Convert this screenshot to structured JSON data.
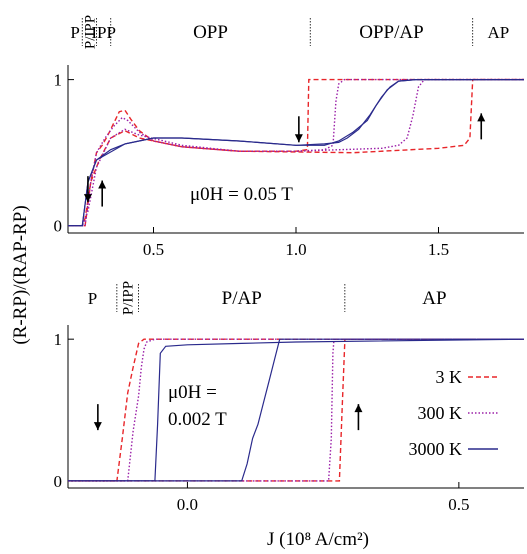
{
  "figure": {
    "ylabel": "(R-RP)/(RAP-RP)",
    "xlabel": "J (10⁸ A/cm²)"
  },
  "chart_data": [
    {
      "type": "line",
      "panel": "top",
      "annotation": "μ0H = 0.05 T",
      "xlim": [
        0.2,
        1.8
      ],
      "ylim": [
        -0.05,
        1.1
      ],
      "x_ticks": [
        "0.5",
        "1.0",
        "1.5"
      ],
      "y_ticks": [
        "0",
        "1"
      ],
      "regions": [
        {
          "label": "P",
          "from": 0.2,
          "to": 0.25
        },
        {
          "label": "P/IPP",
          "from": 0.25,
          "to": 0.3
        },
        {
          "label": "IPP",
          "from": 0.3,
          "to": 0.35
        },
        {
          "label": "OPP",
          "from": 0.35,
          "to": 1.05
        },
        {
          "label": "OPP/AP",
          "from": 1.05,
          "to": 1.62
        },
        {
          "label": "AP",
          "from": 1.62,
          "to": 1.8
        }
      ],
      "separators": [
        0.25,
        0.3,
        0.35,
        1.05,
        1.62
      ],
      "series": [
        {
          "name": "3 K",
          "color": "#e8262a",
          "dash": "5 3",
          "x": [
            0.2,
            0.26,
            0.28,
            0.3,
            0.32,
            0.34,
            0.36,
            0.38,
            0.4,
            0.42,
            0.45,
            0.5,
            0.6,
            0.8,
            1.0,
            1.04,
            1.045,
            1.06,
            1.2,
            1.5,
            1.8
          ],
          "y": [
            0,
            0,
            0.3,
            0.5,
            0.55,
            0.62,
            0.7,
            0.78,
            0.79,
            0.73,
            0.65,
            0.58,
            0.54,
            0.51,
            0.51,
            0.52,
            1.0,
            1.0,
            1.0,
            1.0,
            1.0
          ],
          "x_rev": [
            1.8,
            1.62,
            1.61,
            1.59,
            1.5,
            1.2,
            0.8,
            0.6,
            0.45,
            0.4,
            0.35,
            0.31,
            0.28,
            0.26,
            0.25,
            0.2
          ],
          "y_rev": [
            1.0,
            1.0,
            0.6,
            0.55,
            0.53,
            0.5,
            0.51,
            0.54,
            0.6,
            0.65,
            0.6,
            0.45,
            0.3,
            0.05,
            0,
            0
          ]
        },
        {
          "name": "300 K",
          "color": "#9b20a8",
          "dash": "1.5 2",
          "x": [
            0.2,
            0.26,
            0.28,
            0.3,
            0.33,
            0.36,
            0.39,
            0.41,
            0.45,
            0.5,
            0.6,
            0.8,
            1.0,
            1.1,
            1.13,
            1.14,
            1.15,
            1.17,
            1.2,
            1.5,
            1.8
          ],
          "y": [
            0,
            0,
            0.3,
            0.5,
            0.6,
            0.68,
            0.74,
            0.72,
            0.64,
            0.58,
            0.54,
            0.51,
            0.51,
            0.52,
            0.55,
            0.85,
            0.97,
            1.0,
            1.0,
            1.0,
            1.0
          ],
          "x_rev": [
            1.8,
            1.45,
            1.43,
            1.41,
            1.39,
            1.36,
            1.3,
            1.0,
            0.8,
            0.6,
            0.45,
            0.4,
            0.35,
            0.3,
            0.27,
            0.25,
            0.2
          ],
          "y_rev": [
            1.0,
            1.0,
            0.95,
            0.75,
            0.6,
            0.55,
            0.53,
            0.51,
            0.51,
            0.55,
            0.62,
            0.66,
            0.6,
            0.4,
            0.1,
            0,
            0
          ]
        },
        {
          "name": "3000 K",
          "color": "#2a2a8c",
          "dash": "",
          "x": [
            0.2,
            0.25,
            0.27,
            0.3,
            0.35,
            0.4,
            0.5,
            0.6,
            0.8,
            1.0,
            1.1,
            1.15,
            1.2,
            1.25,
            1.28,
            1.32,
            1.36,
            1.42,
            1.5,
            1.8
          ],
          "y": [
            0,
            0,
            0.3,
            0.45,
            0.52,
            0.56,
            0.6,
            0.6,
            0.58,
            0.55,
            0.55,
            0.58,
            0.64,
            0.72,
            0.82,
            0.93,
            0.99,
            1.0,
            1.0,
            1.0
          ],
          "x_rev": [
            1.8,
            1.45,
            1.42,
            1.36,
            1.33,
            1.3,
            1.26,
            1.22,
            1.18,
            1.15,
            1.1,
            1.0,
            0.8,
            0.6,
            0.5,
            0.4,
            0.3,
            0.27,
            0.25,
            0.2
          ],
          "y_rev": [
            1.0,
            1.0,
            1.0,
            0.99,
            0.95,
            0.88,
            0.76,
            0.66,
            0.6,
            0.57,
            0.56,
            0.55,
            0.58,
            0.6,
            0.6,
            0.56,
            0.45,
            0.3,
            0,
            0
          ]
        }
      ],
      "arrows": [
        {
          "x": 0.27,
          "y": 0.25,
          "dir": "down"
        },
        {
          "x": 0.32,
          "y": 0.22,
          "dir": "up"
        },
        {
          "x": 1.01,
          "y": 0.66,
          "dir": "down"
        },
        {
          "x": 1.65,
          "y": 0.68,
          "dir": "up"
        }
      ]
    },
    {
      "type": "line",
      "panel": "bottom",
      "annotation_lines": [
        "μ0H =",
        "0.002 T"
      ],
      "xlim": [
        -0.22,
        0.62
      ],
      "ylim": [
        -0.05,
        1.1
      ],
      "x_ticks": [
        "0.0",
        "0.5"
      ],
      "y_ticks": [
        "0",
        "1"
      ],
      "regions": [
        {
          "label": "P",
          "from": -0.22,
          "to": -0.13
        },
        {
          "label": "P/IPP",
          "from": -0.13,
          "to": -0.09
        },
        {
          "label": "P/AP",
          "from": -0.09,
          "to": 0.29
        },
        {
          "label": "AP",
          "from": 0.29,
          "to": 0.62
        }
      ],
      "separators": [
        -0.13,
        -0.09,
        0.29
      ],
      "series": [
        {
          "name": "3 K",
          "color": "#e8262a",
          "dash": "5 3",
          "x": [
            -0.22,
            -0.13,
            -0.12,
            -0.11,
            -0.1,
            -0.09,
            -0.08,
            0.0,
            0.62
          ],
          "y": [
            0,
            0,
            0.3,
            0.62,
            0.8,
            0.97,
            1.0,
            1.0,
            1.0
          ],
          "x_rev": [
            0.62,
            0.29,
            0.285,
            0.28,
            0.2,
            -0.22
          ],
          "y_rev": [
            1.0,
            1.0,
            0.5,
            0,
            0,
            0
          ]
        },
        {
          "name": "300 K",
          "color": "#9b20a8",
          "dash": "1.5 2",
          "x": [
            -0.22,
            -0.11,
            -0.1,
            -0.09,
            -0.085,
            -0.08,
            -0.075,
            -0.06,
            0.62
          ],
          "y": [
            0,
            0,
            0.35,
            0.6,
            0.8,
            0.93,
            0.98,
            1.0,
            1.0
          ],
          "x_rev": [
            0.62,
            0.27,
            0.268,
            0.265,
            0.26,
            0.2,
            -0.22
          ],
          "y_rev": [
            1.0,
            1.0,
            0.9,
            0.3,
            0,
            0,
            0
          ]
        },
        {
          "name": "3000 K",
          "color": "#2a2a8c",
          "dash": "",
          "x": [
            -0.22,
            -0.06,
            -0.055,
            -0.05,
            -0.04,
            0.0,
            0.1,
            0.2,
            0.62
          ],
          "y": [
            0,
            0,
            0.4,
            0.9,
            0.95,
            0.96,
            0.97,
            0.98,
            1.0
          ],
          "x_rev": [
            0.62,
            0.17,
            0.16,
            0.15,
            0.14,
            0.13,
            0.12,
            0.11,
            0.1,
            -0.22
          ],
          "y_rev": [
            1.0,
            1.0,
            0.85,
            0.7,
            0.55,
            0.4,
            0.3,
            0.12,
            0,
            0
          ]
        }
      ],
      "arrows": [
        {
          "x": -0.165,
          "y": 0.45,
          "dir": "down"
        },
        {
          "x": 0.315,
          "y": 0.45,
          "dir": "up"
        }
      ],
      "legend": {
        "position": "right-center",
        "entries": [
          "3 K",
          "300 K",
          "3000 K"
        ]
      }
    }
  ]
}
